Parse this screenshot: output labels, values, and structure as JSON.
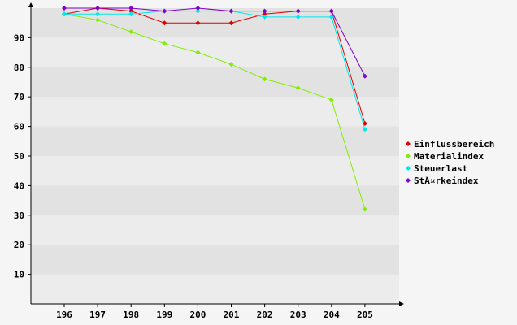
{
  "chart_data": {
    "type": "line",
    "title": "",
    "xlabel": "",
    "ylabel": "",
    "categories": [
      "196",
      "197",
      "198",
      "199",
      "200",
      "201",
      "202",
      "203",
      "204",
      "205"
    ],
    "ylim": [
      0,
      100
    ],
    "yticks": [
      10,
      20,
      30,
      40,
      50,
      60,
      70,
      80,
      90
    ],
    "grid": "alternating horizontal bands",
    "legend_position": "right",
    "series": [
      {
        "name": "Einflussbereich",
        "color": "#e00000",
        "values": [
          98,
          100,
          99,
          95,
          95,
          95,
          98,
          99,
          99,
          61
        ]
      },
      {
        "name": "Materialindex",
        "color": "#80ee00",
        "values": [
          98,
          96,
          92,
          88,
          85,
          81,
          76,
          73,
          69,
          32
        ]
      },
      {
        "name": "Steuerlast",
        "color": "#00e8f0",
        "values": [
          98,
          98,
          98,
          99,
          99,
          99,
          97,
          97,
          97,
          59
        ]
      },
      {
        "name": "StÃ¤rkeindex",
        "color": "#8000d0",
        "values": [
          100,
          100,
          100,
          99,
          100,
          99,
          99,
          99,
          99,
          77
        ]
      }
    ]
  }
}
